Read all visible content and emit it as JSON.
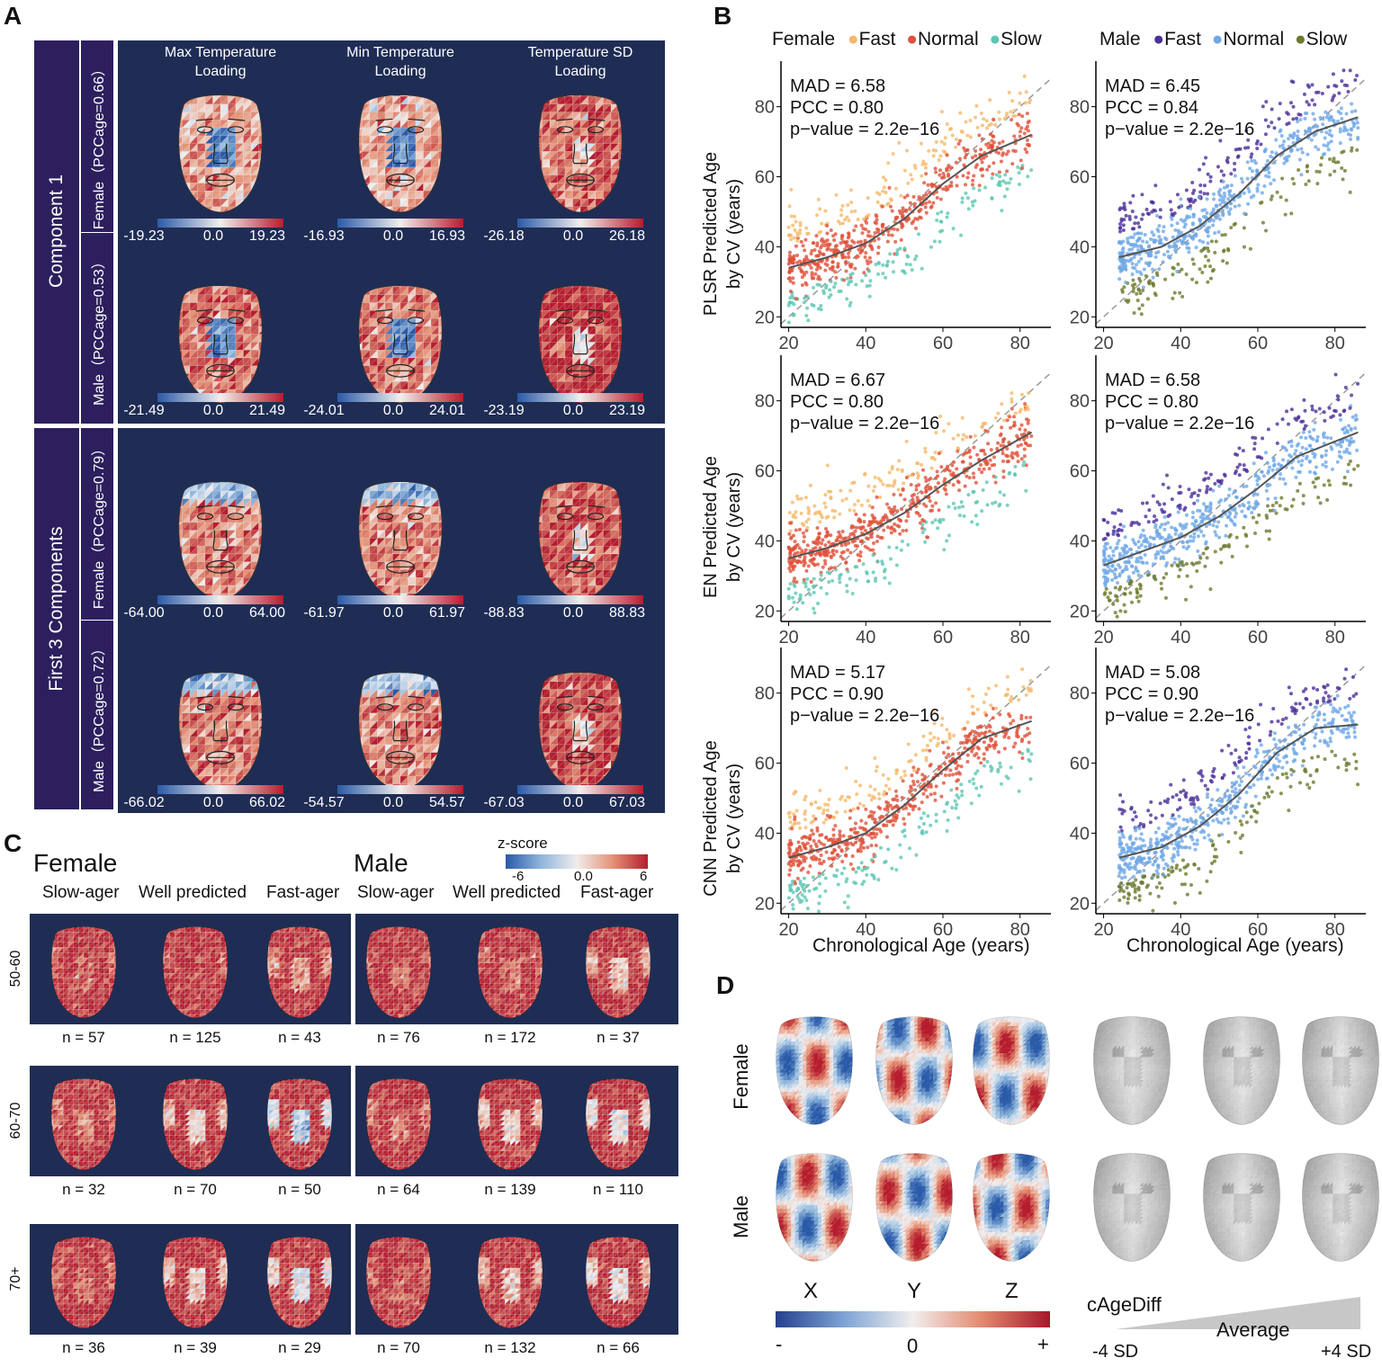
{
  "panels": {
    "A": "A",
    "B": "B",
    "C": "C",
    "D": "D"
  },
  "panelA": {
    "columns": [
      "Max Temperature\nLoading",
      "Min Temperature\nLoading",
      "Temperature SD\nLoading"
    ],
    "col_line1": [
      "Max Temperature",
      "Min Temperature",
      "Temperature SD"
    ],
    "col_line2": [
      "Loading",
      "Loading",
      "Loading"
    ],
    "groups": [
      {
        "title": "Component 1",
        "rows": [
          {
            "label": "Female（PCCage=0.66）",
            "scales": [
              [
                "-19.23",
                "0.0",
                "19.23"
              ],
              [
                "-16.93",
                "0.0",
                "16.93"
              ],
              [
                "-26.18",
                "0.0",
                "26.18"
              ]
            ]
          },
          {
            "label": "Male（PCCage=0.53）",
            "scales": [
              [
                "-21.49",
                "0.0",
                "21.49"
              ],
              [
                "-24.01",
                "0.0",
                "24.01"
              ],
              [
                "-23.19",
                "0.0",
                "23.19"
              ]
            ]
          }
        ]
      },
      {
        "title": "First 3 Components",
        "rows": [
          {
            "label": "Female（PCCage=0.79）",
            "scales": [
              [
                "-64.00",
                "0.0",
                "64.00"
              ],
              [
                "-61.97",
                "0.0",
                "61.97"
              ],
              [
                "-88.83",
                "0.0",
                "88.83"
              ]
            ]
          },
          {
            "label": "Male（PCCage=0.72）",
            "scales": [
              [
                "-66.02",
                "0.0",
                "66.02"
              ],
              [
                "-54.57",
                "0.0",
                "54.57"
              ],
              [
                "-67.03",
                "0.0",
                "67.03"
              ]
            ]
          }
        ]
      }
    ]
  },
  "panelB": {
    "legend_female": {
      "title": "Female",
      "items": [
        {
          "label": "Fast",
          "color": "#f5b96a"
        },
        {
          "label": "Normal",
          "color": "#e0513a"
        },
        {
          "label": "Slow",
          "color": "#5cc7b3"
        }
      ]
    },
    "legend_male": {
      "title": "Male",
      "items": [
        {
          "label": "Fast",
          "color": "#4b2f99"
        },
        {
          "label": "Normal",
          "color": "#6fa8e6"
        },
        {
          "label": "Slow",
          "color": "#6b7a2e"
        }
      ]
    },
    "ylabels": [
      [
        "PLSR Predicted Age",
        "by CV (years)"
      ],
      [
        "EN Predicted Age",
        "by CV (years)"
      ],
      [
        "CNN Predicted Age",
        "by CV (years)"
      ]
    ],
    "xlabel": "Chronological Age (years)"
  },
  "chart_data": [
    {
      "type": "scatter",
      "title": "",
      "model": "PLSR",
      "sex": "Female",
      "xlabel": "",
      "ylabel": "PLSR Predicted Age by CV (years)",
      "xlim": [
        18,
        88
      ],
      "ylim": [
        17,
        93
      ],
      "xticks": [
        20,
        40,
        60,
        80
      ],
      "yticks": [
        20,
        40,
        60,
        80
      ],
      "annotations": [
        "MAD = 6.58",
        "PCC = 0.80",
        "p−value = 2.2e−16"
      ],
      "series": [
        {
          "name": "Fast"
        },
        {
          "name": "Normal"
        },
        {
          "name": "Slow"
        }
      ],
      "fit": [
        [
          20,
          34
        ],
        [
          30,
          37
        ],
        [
          40,
          41
        ],
        [
          50,
          48
        ],
        [
          60,
          58
        ],
        [
          70,
          66
        ],
        [
          83,
          72
        ]
      ]
    },
    {
      "type": "scatter",
      "title": "",
      "model": "PLSR",
      "sex": "Male",
      "xlabel": "",
      "ylabel": "",
      "xlim": [
        18,
        88
      ],
      "ylim": [
        17,
        93
      ],
      "xticks": [
        20,
        40,
        60,
        80
      ],
      "yticks": [
        20,
        40,
        60,
        80
      ],
      "annotations": [
        "MAD = 6.45",
        "PCC = 0.84",
        "p−value = 2.2e−16"
      ],
      "series": [
        {
          "name": "Fast"
        },
        {
          "name": "Normal"
        },
        {
          "name": "Slow"
        }
      ],
      "fit": [
        [
          24,
          37
        ],
        [
          35,
          40
        ],
        [
          45,
          46
        ],
        [
          55,
          55
        ],
        [
          65,
          66
        ],
        [
          75,
          73
        ],
        [
          86,
          77
        ]
      ]
    },
    {
      "type": "scatter",
      "title": "",
      "model": "EN",
      "sex": "Female",
      "xlabel": "",
      "ylabel": "EN Predicted Age by CV (years)",
      "xlim": [
        18,
        88
      ],
      "ylim": [
        17,
        93
      ],
      "xticks": [
        20,
        40,
        60,
        80
      ],
      "yticks": [
        20,
        40,
        60,
        80
      ],
      "annotations": [
        "MAD = 6.67",
        "PCC = 0.80",
        "p−value = 2.2e−16"
      ],
      "series": [
        {
          "name": "Fast"
        },
        {
          "name": "Normal"
        },
        {
          "name": "Slow"
        }
      ],
      "fit": [
        [
          20,
          35
        ],
        [
          30,
          38
        ],
        [
          40,
          42
        ],
        [
          50,
          48
        ],
        [
          60,
          56
        ],
        [
          70,
          63
        ],
        [
          83,
          71
        ]
      ]
    },
    {
      "type": "scatter",
      "title": "",
      "model": "EN",
      "sex": "Male",
      "xlabel": "",
      "ylabel": "",
      "xlim": [
        18,
        88
      ],
      "ylim": [
        17,
        93
      ],
      "xticks": [
        20,
        40,
        60,
        80
      ],
      "yticks": [
        20,
        40,
        60,
        80
      ],
      "annotations": [
        "MAD = 6.58",
        "PCC = 0.80",
        "p−value = 2.2e−16"
      ],
      "series": [
        {
          "name": "Fast"
        },
        {
          "name": "Normal"
        },
        {
          "name": "Slow"
        }
      ],
      "fit": [
        [
          20,
          33
        ],
        [
          30,
          37
        ],
        [
          40,
          41
        ],
        [
          50,
          47
        ],
        [
          60,
          55
        ],
        [
          70,
          64
        ],
        [
          86,
          71
        ]
      ]
    },
    {
      "type": "scatter",
      "title": "",
      "model": "CNN",
      "sex": "Female",
      "xlabel": "Chronological Age (years)",
      "ylabel": "CNN Predicted Age by CV (years)",
      "xlim": [
        18,
        88
      ],
      "ylim": [
        17,
        93
      ],
      "xticks": [
        20,
        40,
        60,
        80
      ],
      "yticks": [
        20,
        40,
        60,
        80
      ],
      "annotations": [
        "MAD = 5.17",
        "PCC = 0.90",
        "p−value = 2.2e−16"
      ],
      "series": [
        {
          "name": "Fast"
        },
        {
          "name": "Normal"
        },
        {
          "name": "Slow"
        }
      ],
      "fit": [
        [
          20,
          33
        ],
        [
          30,
          36
        ],
        [
          40,
          40
        ],
        [
          50,
          48
        ],
        [
          60,
          58
        ],
        [
          70,
          67
        ],
        [
          83,
          72
        ]
      ]
    },
    {
      "type": "scatter",
      "title": "",
      "model": "CNN",
      "sex": "Male",
      "xlabel": "Chronological Age (years)",
      "ylabel": "",
      "xlim": [
        18,
        88
      ],
      "ylim": [
        17,
        93
      ],
      "xticks": [
        20,
        40,
        60,
        80
      ],
      "yticks": [
        20,
        40,
        60,
        80
      ],
      "annotations": [
        "MAD = 5.08",
        "PCC = 0.90",
        "p−value = 2.2e−16"
      ],
      "series": [
        {
          "name": "Fast"
        },
        {
          "name": "Normal"
        },
        {
          "name": "Slow"
        }
      ],
      "fit": [
        [
          24,
          33
        ],
        [
          35,
          36
        ],
        [
          45,
          42
        ],
        [
          55,
          51
        ],
        [
          65,
          63
        ],
        [
          75,
          70
        ],
        [
          86,
          71
        ]
      ]
    }
  ],
  "panelC": {
    "zscore": {
      "title": "z-score",
      "min": "-6",
      "mid": "0.0",
      "max": "6"
    },
    "sexes": [
      "Female",
      "Male"
    ],
    "groups": [
      "Slow-ager",
      "Well predicted",
      "Fast-ager"
    ],
    "rows": [
      {
        "age": "50-60",
        "n": [
          "n = 57",
          "n = 125",
          "n = 43",
          "n = 76",
          "n = 172",
          "n = 37"
        ]
      },
      {
        "age": "60-70",
        "n": [
          "n = 32",
          "n = 70",
          "n = 50",
          "n = 64",
          "n = 139",
          "n = 110"
        ]
      },
      {
        "age": "70+",
        "n": [
          "n = 36",
          "n = 39",
          "n = 29",
          "n = 70",
          "n = 132",
          "n = 66"
        ]
      }
    ]
  },
  "panelD": {
    "rows": [
      "Female",
      "Male"
    ],
    "axes": [
      "X",
      "Y",
      "Z"
    ],
    "colorbar": {
      "min": "-",
      "mid": "0",
      "max": "+"
    },
    "cagediff": {
      "label": "cAgeDiff",
      "mid": "Average",
      "min": "-4 SD",
      "max": "+4 SD"
    }
  }
}
